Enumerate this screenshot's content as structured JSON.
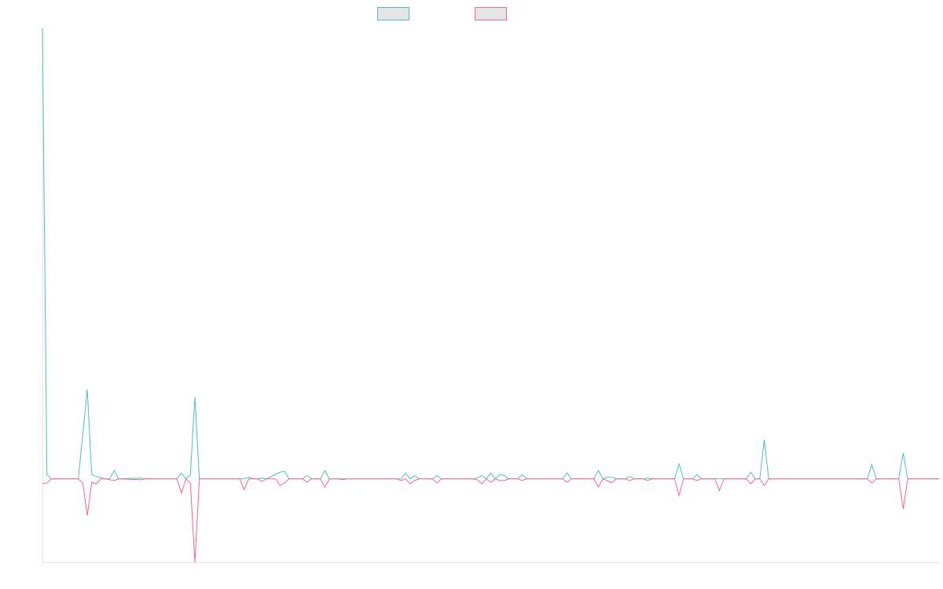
{
  "chart_data": {
    "type": "line",
    "title": "",
    "xlabel": "",
    "ylabel": "",
    "x_count": 201,
    "ylim": [
      -100,
      540
    ],
    "grid": false,
    "legend_position": "top-center",
    "series": [
      {
        "color": "#4bc0c0",
        "legend_fill": "#e5e5e5",
        "points": [
          [
            0,
            540
          ],
          [
            1,
            5
          ],
          [
            2,
            0
          ],
          [
            8,
            0
          ],
          [
            10,
            107
          ],
          [
            11,
            5
          ],
          [
            12,
            3
          ],
          [
            14,
            0
          ],
          [
            15,
            0
          ],
          [
            16,
            10
          ],
          [
            17,
            0
          ],
          [
            22,
            1
          ],
          [
            23,
            0
          ],
          [
            30,
            0
          ],
          [
            31,
            7
          ],
          [
            32,
            0
          ],
          [
            33,
            5
          ],
          [
            34,
            98
          ],
          [
            35,
            0
          ],
          [
            45,
            0
          ],
          [
            46,
            2
          ],
          [
            47,
            0
          ],
          [
            48,
            0
          ],
          [
            49,
            1
          ],
          [
            50,
            0
          ],
          [
            53,
            8
          ],
          [
            54,
            9
          ],
          [
            55,
            0
          ],
          [
            58,
            0
          ],
          [
            59,
            4
          ],
          [
            60,
            0
          ],
          [
            62,
            0
          ],
          [
            63,
            10
          ],
          [
            64,
            0
          ],
          [
            80,
            0
          ],
          [
            81,
            7
          ],
          [
            82,
            0
          ],
          [
            83,
            4
          ],
          [
            84,
            0
          ],
          [
            87,
            0
          ],
          [
            88,
            4
          ],
          [
            89,
            0
          ],
          [
            96,
            0
          ],
          [
            97,
            1
          ],
          [
            98,
            4
          ],
          [
            99,
            0
          ],
          [
            100,
            7
          ],
          [
            101,
            0
          ],
          [
            102,
            5
          ],
          [
            103,
            4
          ],
          [
            104,
            0
          ],
          [
            106,
            0
          ],
          [
            107,
            5
          ],
          [
            108,
            0
          ],
          [
            116,
            0
          ],
          [
            117,
            7
          ],
          [
            118,
            0
          ],
          [
            123,
            0
          ],
          [
            124,
            10
          ],
          [
            125,
            0
          ],
          [
            126,
            2
          ],
          [
            127,
            2
          ],
          [
            128,
            0
          ],
          [
            130,
            0
          ],
          [
            131,
            3
          ],
          [
            132,
            0
          ],
          [
            134,
            0
          ],
          [
            135,
            1
          ],
          [
            136,
            0
          ],
          [
            141,
            0
          ],
          [
            142,
            18
          ],
          [
            143,
            0
          ],
          [
            145,
            0
          ],
          [
            146,
            5
          ],
          [
            147,
            0
          ],
          [
            157,
            0
          ],
          [
            158,
            8
          ],
          [
            159,
            0
          ],
          [
            160,
            0
          ],
          [
            161,
            47
          ],
          [
            162,
            0
          ],
          [
            184,
            0
          ],
          [
            185,
            17
          ],
          [
            186,
            0
          ],
          [
            191,
            0
          ],
          [
            192,
            31
          ],
          [
            193,
            0
          ],
          [
            200,
            0
          ]
        ]
      },
      {
        "color": "#ff6384",
        "legend_fill": "#e5e5e5",
        "points": [
          [
            0,
            -6
          ],
          [
            1,
            -5
          ],
          [
            2,
            0
          ],
          [
            8,
            0
          ],
          [
            9,
            -5
          ],
          [
            10,
            -44
          ],
          [
            11,
            -4
          ],
          [
            12,
            -6
          ],
          [
            13,
            0
          ],
          [
            14,
            0
          ],
          [
            16,
            -2
          ],
          [
            17,
            0
          ],
          [
            22,
            -1
          ],
          [
            23,
            0
          ],
          [
            30,
            0
          ],
          [
            31,
            -17
          ],
          [
            32,
            0
          ],
          [
            33,
            -5
          ],
          [
            34,
            -100
          ],
          [
            35,
            0
          ],
          [
            44,
            0
          ],
          [
            45,
            -13
          ],
          [
            46,
            0
          ],
          [
            48,
            0
          ],
          [
            49,
            -3
          ],
          [
            50,
            0
          ],
          [
            52,
            0
          ],
          [
            53,
            -8
          ],
          [
            54,
            -5
          ],
          [
            55,
            0
          ],
          [
            58,
            0
          ],
          [
            59,
            -4
          ],
          [
            60,
            0
          ],
          [
            62,
            0
          ],
          [
            63,
            -10
          ],
          [
            64,
            0
          ],
          [
            66,
            0
          ],
          [
            67,
            -1
          ],
          [
            68,
            0
          ],
          [
            79,
            0
          ],
          [
            80,
            -2
          ],
          [
            81,
            0
          ],
          [
            82,
            -6
          ],
          [
            83,
            -2
          ],
          [
            84,
            0
          ],
          [
            87,
            0
          ],
          [
            88,
            -5
          ],
          [
            89,
            0
          ],
          [
            96,
            0
          ],
          [
            97,
            -1
          ],
          [
            98,
            -6
          ],
          [
            99,
            0
          ],
          [
            100,
            -4
          ],
          [
            101,
            0
          ],
          [
            102,
            -2
          ],
          [
            103,
            -2
          ],
          [
            104,
            0
          ],
          [
            106,
            0
          ],
          [
            107,
            -2
          ],
          [
            108,
            0
          ],
          [
            116,
            0
          ],
          [
            117,
            -4
          ],
          [
            118,
            0
          ],
          [
            123,
            0
          ],
          [
            124,
            -10
          ],
          [
            125,
            0
          ],
          [
            126,
            -2
          ],
          [
            127,
            -5
          ],
          [
            128,
            0
          ],
          [
            130,
            0
          ],
          [
            131,
            -2
          ],
          [
            132,
            0
          ],
          [
            134,
            0
          ],
          [
            135,
            -2
          ],
          [
            136,
            0
          ],
          [
            141,
            0
          ],
          [
            142,
            -20
          ],
          [
            143,
            0
          ],
          [
            145,
            0
          ],
          [
            146,
            -2
          ],
          [
            147,
            0
          ],
          [
            150,
            0
          ],
          [
            151,
            -14
          ],
          [
            152,
            0
          ],
          [
            157,
            0
          ],
          [
            158,
            -6
          ],
          [
            159,
            0
          ],
          [
            160,
            0
          ],
          [
            161,
            -8
          ],
          [
            162,
            0
          ],
          [
            184,
            0
          ],
          [
            185,
            -5
          ],
          [
            186,
            0
          ],
          [
            191,
            0
          ],
          [
            192,
            -36
          ],
          [
            193,
            0
          ],
          [
            200,
            0
          ]
        ]
      }
    ]
  }
}
